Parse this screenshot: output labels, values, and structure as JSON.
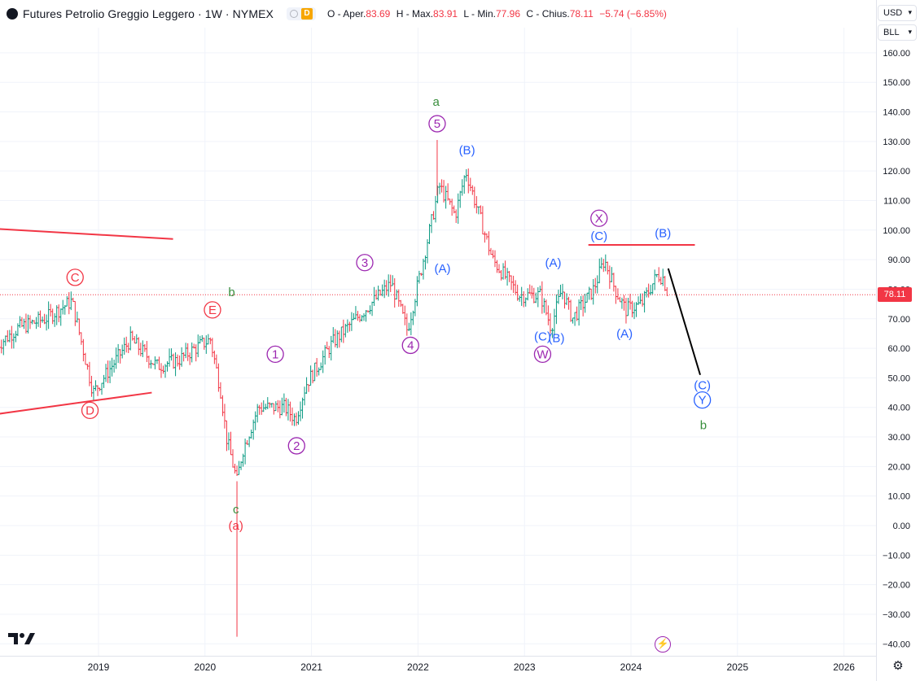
{
  "header": {
    "title": "Futures Petrolio Greggio Leggero · 1W · NYMEX",
    "badge_letter": "D",
    "open_label": "O - Aper.",
    "open": "83.69",
    "high_label": "H - Max.",
    "high": "83.91",
    "low_label": "L - Min.",
    "low": "77.96",
    "close_label": "C - Chius.",
    "close": "78.11",
    "change": "−5.74 (−6.85%)"
  },
  "toolbar": {
    "currency": "USD",
    "unit": "BLL"
  },
  "price_tag": "78.11",
  "chart_data": {
    "type": "candlestick",
    "title": "Futures Petrolio Greggio Leggero · 1W · NYMEX",
    "yaxis": {
      "min": -40,
      "max": 160,
      "ticks": [
        "160.00",
        "150.00",
        "140.00",
        "130.00",
        "120.00",
        "110.00",
        "100.00",
        "90.00",
        "80.00",
        "70.00",
        "60.00",
        "50.00",
        "40.00",
        "30.00",
        "20.00",
        "10.00",
        "0.00",
        "−10.00",
        "−20.00",
        "−30.00",
        "−40.00"
      ]
    },
    "xaxis": {
      "ticks": [
        "2019",
        "2020",
        "2021",
        "2022",
        "2023",
        "2024",
        "2025",
        "2026"
      ]
    },
    "grid": true,
    "up_color": "#089981",
    "down_color": "#f23645",
    "last_close": 78.11,
    "price_path": [
      [
        2018.05,
        61
      ],
      [
        2018.25,
        67
      ],
      [
        2018.5,
        70
      ],
      [
        2018.75,
        76
      ],
      [
        2018.95,
        45
      ],
      [
        2019.3,
        63
      ],
      [
        2019.55,
        54
      ],
      [
        2019.75,
        56
      ],
      [
        2019.95,
        61
      ],
      [
        2020.05,
        63
      ],
      [
        2020.15,
        45
      ],
      [
        2020.2,
        30
      ],
      [
        2020.3,
        15
      ],
      [
        2020.35,
        25
      ],
      [
        2020.5,
        40
      ],
      [
        2020.75,
        40
      ],
      [
        2020.85,
        36
      ],
      [
        2020.95,
        48
      ],
      [
        2021.2,
        62
      ],
      [
        2021.5,
        73
      ],
      [
        2021.75,
        82
      ],
      [
        2021.9,
        66
      ],
      [
        2022.05,
        90
      ],
      [
        2022.2,
        115
      ],
      [
        2022.35,
        105
      ],
      [
        2022.45,
        120
      ],
      [
        2022.7,
        90
      ],
      [
        2022.95,
        78
      ],
      [
        2023.15,
        78
      ],
      [
        2023.25,
        67
      ],
      [
        2023.35,
        80
      ],
      [
        2023.45,
        70
      ],
      [
        2023.65,
        80
      ],
      [
        2023.75,
        90
      ],
      [
        2023.85,
        80
      ],
      [
        2023.95,
        73
      ],
      [
        2024.1,
        75
      ],
      [
        2024.25,
        85
      ],
      [
        2024.3,
        83.91
      ],
      [
        2024.35,
        78.11
      ]
    ],
    "spikes": [
      {
        "date": 2020.3,
        "low": -37.63
      },
      {
        "date": 2022.18,
        "high": 130.5
      }
    ],
    "annotations": [
      {
        "text": "C",
        "x": 2018.78,
        "y": 84,
        "style": "circle",
        "color": "#f23645"
      },
      {
        "text": "D",
        "x": 2018.92,
        "y": 39,
        "style": "circle",
        "color": "#f23645"
      },
      {
        "text": "E",
        "x": 2020.07,
        "y": 73,
        "style": "circle",
        "color": "#f23645"
      },
      {
        "text": "b",
        "x": 2020.25,
        "y": 79,
        "style": "plain",
        "color": "#388e3c"
      },
      {
        "text": "1",
        "x": 2020.66,
        "y": 58,
        "style": "circle",
        "color": "#9c27b0"
      },
      {
        "text": "2",
        "x": 2020.86,
        "y": 27,
        "style": "circle",
        "color": "#9c27b0"
      },
      {
        "text": "c",
        "x": 2020.29,
        "y": 5.5,
        "style": "plain",
        "color": "#388e3c"
      },
      {
        "text": "(a)",
        "x": 2020.29,
        "y": 0,
        "style": "plain",
        "color": "#f23645"
      },
      {
        "text": "3",
        "x": 2021.5,
        "y": 89,
        "style": "circle",
        "color": "#9c27b0"
      },
      {
        "text": "4",
        "x": 2021.93,
        "y": 61,
        "style": "circle",
        "color": "#9c27b0"
      },
      {
        "text": "a",
        "x": 2022.17,
        "y": 143.5,
        "style": "plain",
        "color": "#388e3c"
      },
      {
        "text": "5",
        "x": 2022.18,
        "y": 136,
        "style": "circle",
        "color": "#9c27b0"
      },
      {
        "text": "(B)",
        "x": 2022.46,
        "y": 127,
        "style": "plain",
        "color": "#2962ff"
      },
      {
        "text": "(A)",
        "x": 2022.23,
        "y": 87,
        "style": "plain",
        "color": "#2962ff"
      },
      {
        "text": "(A)",
        "x": 2023.27,
        "y": 89,
        "style": "plain",
        "color": "#2962ff"
      },
      {
        "text": "(C)",
        "x": 2023.17,
        "y": 64,
        "style": "plain",
        "color": "#2962ff"
      },
      {
        "text": "(B)",
        "x": 2023.3,
        "y": 63.5,
        "style": "plain",
        "color": "#2962ff"
      },
      {
        "text": "W",
        "x": 2023.17,
        "y": 58,
        "style": "circle",
        "color": "#9c27b0"
      },
      {
        "text": "X",
        "x": 2023.7,
        "y": 104,
        "style": "circle",
        "color": "#9c27b0"
      },
      {
        "text": "(C)",
        "x": 2023.7,
        "y": 98,
        "style": "plain",
        "color": "#2962ff"
      },
      {
        "text": "(B)",
        "x": 2024.3,
        "y": 99,
        "style": "plain",
        "color": "#2962ff"
      },
      {
        "text": "(A)",
        "x": 2023.94,
        "y": 65,
        "style": "plain",
        "color": "#2962ff"
      },
      {
        "text": "(C)",
        "x": 2024.67,
        "y": 47.5,
        "style": "plain",
        "color": "#2962ff"
      },
      {
        "text": "Y",
        "x": 2024.67,
        "y": 42.5,
        "style": "circle",
        "color": "#2962ff"
      },
      {
        "text": "b",
        "x": 2024.68,
        "y": 34,
        "style": "plain",
        "color": "#388e3c"
      }
    ],
    "trendlines": [
      {
        "color": "#f23645",
        "x1": 2018.0,
        "y1": 100.5,
        "x2": 2019.7,
        "y2": 97
      },
      {
        "color": "#f23645",
        "x1": 2018.0,
        "y1": 37.5,
        "x2": 2019.5,
        "y2": 45
      },
      {
        "color": "#f23645",
        "x1": 2023.6,
        "y1": 95,
        "x2": 2024.6,
        "y2": 95
      },
      {
        "color": "#000000",
        "x1": 2024.35,
        "y1": 87,
        "x2": 2024.65,
        "y2": 51
      }
    ]
  }
}
